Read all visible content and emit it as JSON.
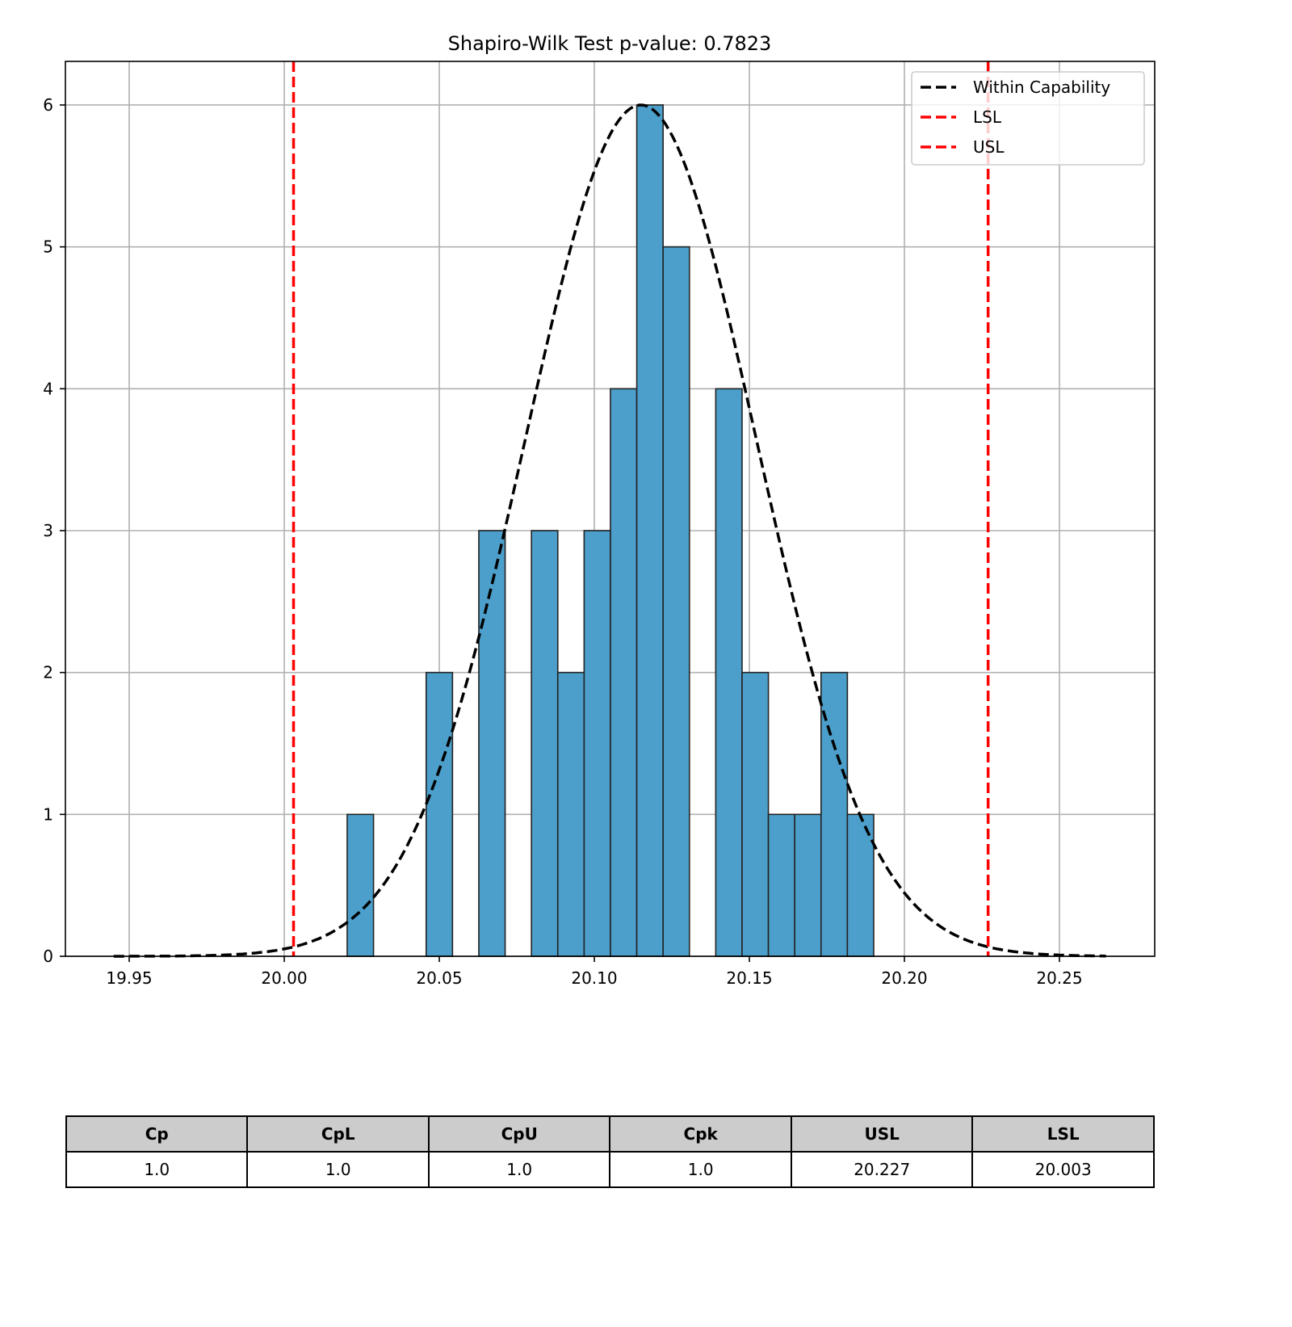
{
  "chart_data": {
    "type": "bar",
    "title": "Shapiro-Wilk Test p-value: 0.7823",
    "xlabel": "",
    "ylabel": "",
    "xlim": [
      19.929,
      20.28
    ],
    "ylim": [
      0,
      6.3
    ],
    "xticks": [
      "19.95",
      "20.00",
      "20.05",
      "20.10",
      "20.15",
      "20.20",
      "20.25"
    ],
    "xtick_values": [
      19.95,
      20.0,
      20.05,
      20.1,
      20.15,
      20.2,
      20.25
    ],
    "yticks": [
      "0",
      "1",
      "2",
      "3",
      "4",
      "5",
      "6"
    ],
    "grid": true,
    "histogram": {
      "bin_start": 20.0203,
      "bin_end": 20.1901,
      "counts": [
        1,
        0,
        0,
        2,
        0,
        3,
        0,
        3,
        2,
        3,
        4,
        6,
        5,
        0,
        4,
        2,
        1,
        1,
        2,
        1
      ],
      "color": "#4c9fcb"
    },
    "curve": {
      "name": "Within Capability",
      "mean": 20.115,
      "sigma": 0.0373,
      "peak": 6.0,
      "x_range": [
        19.945,
        20.265
      ],
      "color": "#000000"
    },
    "vlines": [
      {
        "name": "LSL",
        "x": 20.003,
        "color": "#ff0000"
      },
      {
        "name": "USL",
        "x": 20.227,
        "color": "#ff0000"
      }
    ],
    "legend": {
      "position": "top-right",
      "entries": [
        "Within Capability",
        "LSL",
        "USL"
      ]
    }
  },
  "table": {
    "headers": [
      "Cp",
      "CpL",
      "CpU",
      "Cpk",
      "USL",
      "LSL"
    ],
    "values": [
      "1.0",
      "1.0",
      "1.0",
      "1.0",
      "20.227",
      "20.003"
    ]
  }
}
